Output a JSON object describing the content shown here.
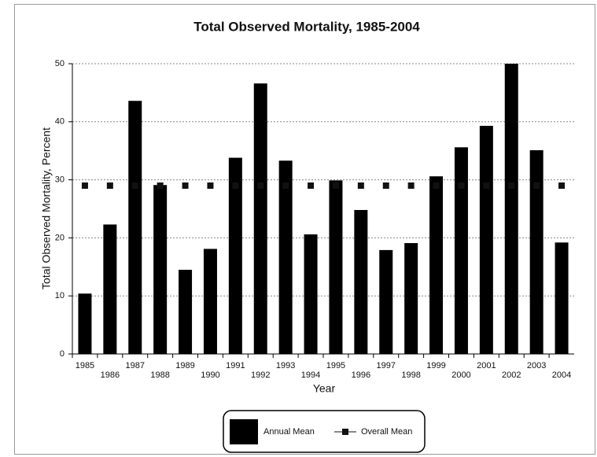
{
  "chart_data": {
    "type": "bar",
    "title": "Total Observed Mortality, 1985-2004",
    "x_label": "Year",
    "y_label": "Total Observed Mortality, Percent",
    "categories": [
      "1985",
      "1986",
      "1987",
      "1988",
      "1989",
      "1990",
      "1991",
      "1992",
      "1993",
      "1994",
      "1995",
      "1996",
      "1997",
      "1998",
      "1999",
      "2000",
      "2001",
      "2002",
      "2003",
      "2004"
    ],
    "series": [
      {
        "name": "Annual Mean",
        "type": "bar",
        "color": "#000000",
        "values": [
          10.4,
          22.3,
          43.6,
          29.1,
          14.5,
          18.1,
          33.8,
          46.6,
          33.3,
          20.6,
          29.9,
          24.8,
          17.9,
          19.1,
          30.6,
          35.6,
          39.3,
          50,
          35.1,
          19.2
        ]
      },
      {
        "name": "Overall Mean",
        "type": "line",
        "color": "#111111",
        "values": [
          29,
          29,
          29,
          29,
          29,
          29,
          29,
          29,
          29,
          29,
          29,
          29,
          29,
          29,
          29,
          29,
          29,
          29,
          29,
          29
        ]
      }
    ],
    "ylim": [
      0,
      50
    ],
    "yticks": [
      0,
      10,
      20,
      30,
      40,
      50
    ],
    "grid": true,
    "legend": "bottom"
  }
}
